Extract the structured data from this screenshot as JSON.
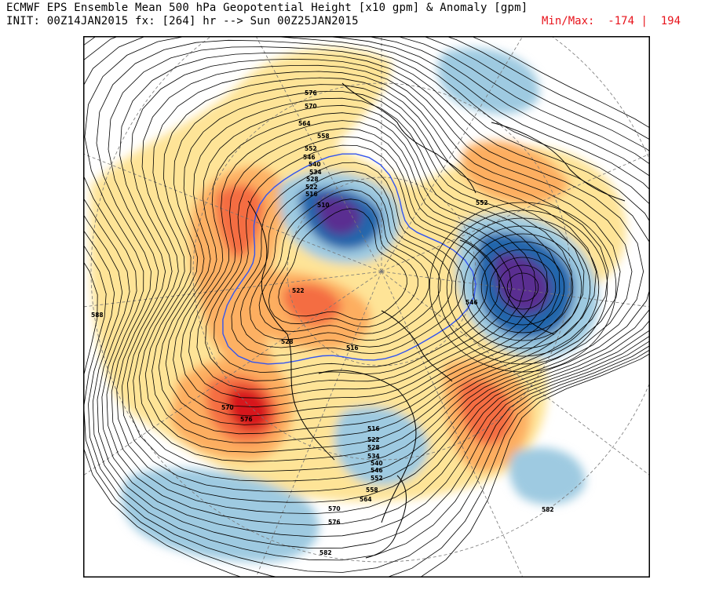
{
  "header": {
    "title": "ECMWF EPS Ensemble Mean 500 hPa Geopotential Height [x10 gpm] & Anomaly [gpm]",
    "init": "INIT: 00Z14JAN2015 fx: [264] hr --> Sun 00Z25JAN2015",
    "minmax_label": "Min/Max:",
    "min": "-174",
    "max": "194",
    "separator": "|"
  },
  "colors": {
    "neg_strong": "#5a2d91",
    "neg_mid": "#2166ac",
    "neg_light": "#9ecae1",
    "pos_light": "#fee391",
    "pos_mid": "#f46d43",
    "pos_strong": "#d7191c",
    "contour": "#000000",
    "contour_540": "#3355ee",
    "grid": "#777777",
    "minmax_text": "#e8141c"
  },
  "map": {
    "projection": "north-polar-stereographic",
    "contour_labels": [
      "576",
      "570",
      "564",
      "558",
      "552",
      "546",
      "540",
      "534",
      "528",
      "522",
      "516",
      "510",
      "552",
      "546",
      "522",
      "528",
      "516",
      "570",
      "576",
      "516",
      "522",
      "528",
      "534",
      "540",
      "546",
      "552",
      "558",
      "564",
      "570",
      "576",
      "582",
      "582",
      "588"
    ]
  }
}
